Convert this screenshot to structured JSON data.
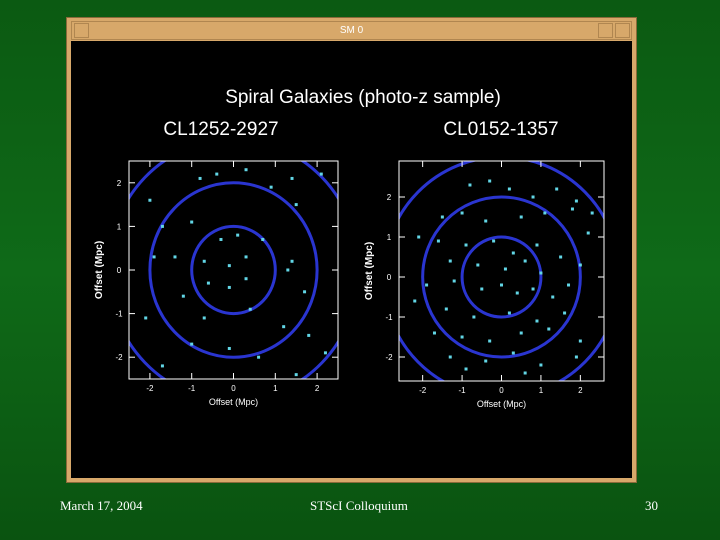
{
  "window": {
    "title": "SM 0"
  },
  "heading": "Spiral Galaxies (photo-z sample)",
  "footer": {
    "date": "March 17, 2004",
    "event": "STScI Colloquium",
    "page": "30"
  },
  "chart_data": [
    {
      "type": "scatter",
      "title": "CL1252-2927",
      "x_label": "Offset (Mpc)",
      "y_label": "Offset (Mpc)",
      "xlim": [
        -2.5,
        2.5
      ],
      "ylim": [
        -2.5,
        2.5
      ],
      "xticks": [
        -2,
        -1,
        0,
        1,
        2
      ],
      "yticks": [
        -2,
        -1,
        0,
        1,
        2
      ],
      "circles": [
        1,
        2,
        3
      ],
      "circle_color": "#2a35d0",
      "series": [
        {
          "color": "#62d6e6",
          "x": [
            -0.8,
            -0.4,
            0.3,
            0.9,
            1.4,
            2.1,
            -2.0,
            -1.7,
            -1.0,
            -0.3,
            0.1,
            0.7,
            1.5,
            -1.9,
            -1.4,
            -0.7,
            -0.1,
            0.3,
            1.3,
            1.4,
            -1.2,
            -0.6,
            -0.1,
            0.3,
            1.7,
            -2.1,
            -0.7,
            0.4,
            1.2,
            -1.0,
            -0.1,
            1.8,
            2.2,
            -1.7,
            0.6,
            1.5
          ],
          "y": [
            2.1,
            2.2,
            2.3,
            1.9,
            2.1,
            2.2,
            1.6,
            1.0,
            1.1,
            0.7,
            0.8,
            0.7,
            1.5,
            0.3,
            0.3,
            0.2,
            0.1,
            0.3,
            0.0,
            0.2,
            -0.6,
            -0.3,
            -0.4,
            -0.2,
            -0.5,
            -1.1,
            -1.1,
            -0.9,
            -1.3,
            -1.7,
            -1.8,
            -1.5,
            -1.9,
            -2.2,
            -2.0,
            -2.4
          ]
        }
      ]
    },
    {
      "type": "scatter",
      "title": "CL0152-1357",
      "x_label": "Offset (Mpc)",
      "y_label": "Offset (Mpc)",
      "xlim": [
        -2.6,
        2.6
      ],
      "ylim": [
        -2.6,
        2.9
      ],
      "xticks": [
        -2,
        -1,
        0,
        1,
        2
      ],
      "yticks": [
        -2,
        -1,
        0,
        1,
        2
      ],
      "circles": [
        1,
        2,
        3
      ],
      "circle_color": "#2a35d0",
      "series": [
        {
          "color": "#62d6e6",
          "x": [
            -0.8,
            -0.3,
            0.2,
            0.8,
            1.4,
            1.9,
            2.3,
            -1.5,
            -1.0,
            -0.4,
            0.5,
            1.1,
            1.8,
            2.2,
            -2.1,
            -1.6,
            -0.9,
            -0.2,
            0.3,
            0.9,
            1.5,
            -1.3,
            -0.6,
            0.1,
            0.6,
            1.0,
            2.0,
            -1.9,
            -1.2,
            -0.5,
            0.0,
            0.4,
            0.8,
            1.3,
            1.7,
            -2.2,
            -1.4,
            -0.7,
            0.2,
            0.9,
            1.6,
            -1.7,
            -1.0,
            -0.3,
            0.5,
            1.2,
            2.0,
            -1.3,
            -0.4,
            0.3,
            1.0,
            1.9,
            -0.9,
            0.6
          ],
          "y": [
            2.3,
            2.4,
            2.2,
            2.0,
            2.2,
            1.9,
            1.6,
            1.5,
            1.6,
            1.4,
            1.5,
            1.6,
            1.7,
            1.1,
            1.0,
            0.9,
            0.8,
            0.9,
            0.6,
            0.8,
            0.5,
            0.4,
            0.3,
            0.2,
            0.4,
            0.1,
            0.3,
            -0.2,
            -0.1,
            -0.3,
            -0.2,
            -0.4,
            -0.3,
            -0.5,
            -0.2,
            -0.6,
            -0.8,
            -1.0,
            -0.9,
            -1.1,
            -0.9,
            -1.4,
            -1.5,
            -1.6,
            -1.4,
            -1.3,
            -1.6,
            -2.0,
            -2.1,
            -1.9,
            -2.2,
            -2.0,
            -2.3,
            -2.4
          ]
        }
      ]
    }
  ]
}
